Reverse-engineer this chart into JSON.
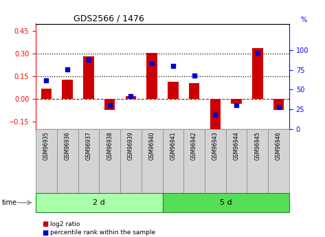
{
  "title": "GDS2566 / 1476",
  "samples": [
    "GSM96935",
    "GSM96936",
    "GSM96937",
    "GSM96938",
    "GSM96939",
    "GSM96940",
    "GSM96941",
    "GSM96942",
    "GSM96943",
    "GSM96944",
    "GSM96945",
    "GSM96946"
  ],
  "log2_ratio": [
    0.07,
    0.13,
    0.285,
    -0.07,
    0.02,
    0.305,
    0.115,
    0.105,
    -0.2,
    -0.03,
    0.34,
    -0.07
  ],
  "percentile_rank": [
    62,
    76,
    88,
    30,
    42,
    83,
    80,
    68,
    18,
    30,
    96,
    28
  ],
  "group_labels": [
    "2 d",
    "5 d"
  ],
  "group_ranges": [
    [
      0,
      6
    ],
    [
      6,
      12
    ]
  ],
  "bar_color": "#cc0000",
  "dot_color": "#0000cc",
  "ylim_left": [
    -0.2,
    0.5
  ],
  "ylim_right": [
    0,
    133.33
  ],
  "yticks_left": [
    -0.15,
    0,
    0.15,
    0.3,
    0.45
  ],
  "yticks_right": [
    0,
    25,
    50,
    75,
    100
  ],
  "hlines": [
    0.15,
    0.3
  ],
  "background_color": "#ffffff",
  "plot_bg_color": "#ffffff",
  "group_colors": [
    "#aaffaa",
    "#55dd55"
  ],
  "time_label": "time",
  "legend_items": [
    "log2 ratio",
    "percentile rank within the sample"
  ]
}
